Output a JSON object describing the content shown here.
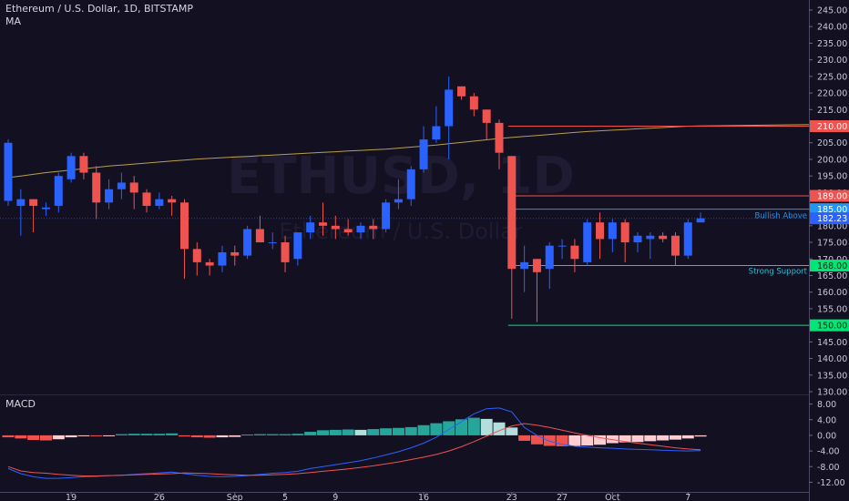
{
  "header": {
    "title": "Ethereum / U.S. Dollar, 1D, BITSTAMP",
    "indicator": "MA",
    "macd_label": "MACD"
  },
  "watermark": {
    "symbol": "ETHUSD, 1D",
    "name": "Ethereum / U.S. Dollar"
  },
  "colors": {
    "background": "#131022",
    "up": "#2962ff",
    "down": "#ef5350",
    "ma": "#b8a04a",
    "hist_up_strong": "#26a69a",
    "hist_up_weak": "#b2dfdb",
    "hist_down_strong": "#ef5350",
    "hist_down_weak": "#ffcdd2",
    "macd_line": "#2962ff",
    "signal_line": "#ef5350"
  },
  "chart_data": {
    "type": "candlestick",
    "price_axis": {
      "min": 130,
      "max": 245,
      "ticks": [
        "245.00",
        "240.00",
        "235.00",
        "230.00",
        "225.00",
        "220.00",
        "215.00",
        "210.00",
        "205.00",
        "200.00",
        "195.00",
        "190.00",
        "185.00",
        "180.00",
        "175.00",
        "170.00",
        "165.00",
        "160.00",
        "155.00",
        "150.00",
        "145.00",
        "140.00",
        "135.00",
        "130.00"
      ]
    },
    "x_labels": [
      {
        "index": 5,
        "label": "19"
      },
      {
        "index": 12,
        "label": "26"
      },
      {
        "index": 18,
        "label": "Sep"
      },
      {
        "index": 22,
        "label": "5"
      },
      {
        "index": 26,
        "label": "9"
      },
      {
        "index": 33,
        "label": "16"
      },
      {
        "index": 40,
        "label": "23"
      },
      {
        "index": 44,
        "label": "27"
      },
      {
        "index": 48,
        "label": "Oct"
      },
      {
        "index": 54,
        "label": "7"
      }
    ],
    "candles": [
      {
        "o": 187.5,
        "h": 206,
        "l": 186,
        "c": 205
      },
      {
        "o": 186,
        "h": 191,
        "l": 177,
        "c": 188
      },
      {
        "o": 188,
        "h": 188,
        "l": 178,
        "c": 186
      },
      {
        "o": 185,
        "h": 187,
        "l": 183,
        "c": 185.5
      },
      {
        "o": 186,
        "h": 196,
        "l": 184,
        "c": 195
      },
      {
        "o": 194,
        "h": 202,
        "l": 193,
        "c": 201
      },
      {
        "o": 201,
        "h": 202,
        "l": 194,
        "c": 196
      },
      {
        "o": 196,
        "h": 198,
        "l": 182,
        "c": 187
      },
      {
        "o": 187,
        "h": 194,
        "l": 185,
        "c": 191
      },
      {
        "o": 191,
        "h": 196,
        "l": 188,
        "c": 193
      },
      {
        "o": 193,
        "h": 195,
        "l": 185,
        "c": 190
      },
      {
        "o": 190,
        "h": 191,
        "l": 184,
        "c": 186
      },
      {
        "o": 186,
        "h": 190,
        "l": 185,
        "c": 188
      },
      {
        "o": 188,
        "h": 189,
        "l": 183,
        "c": 187
      },
      {
        "o": 187,
        "h": 188,
        "l": 164,
        "c": 173
      },
      {
        "o": 173,
        "h": 175,
        "l": 165,
        "c": 169
      },
      {
        "o": 169,
        "h": 170,
        "l": 165,
        "c": 168
      },
      {
        "o": 168,
        "h": 174,
        "l": 166,
        "c": 172
      },
      {
        "o": 172,
        "h": 174,
        "l": 168,
        "c": 171
      },
      {
        "o": 171,
        "h": 180,
        "l": 170,
        "c": 179
      },
      {
        "o": 179,
        "h": 183,
        "l": 175,
        "c": 175
      },
      {
        "o": 175,
        "h": 178,
        "l": 173,
        "c": 175
      },
      {
        "o": 175,
        "h": 177,
        "l": 166,
        "c": 169
      },
      {
        "o": 170,
        "h": 178,
        "l": 168,
        "c": 178
      },
      {
        "o": 178,
        "h": 183,
        "l": 176,
        "c": 181
      },
      {
        "o": 181,
        "h": 187,
        "l": 177,
        "c": 180
      },
      {
        "o": 180,
        "h": 183,
        "l": 176,
        "c": 179
      },
      {
        "o": 179,
        "h": 182,
        "l": 177,
        "c": 178
      },
      {
        "o": 178,
        "h": 181,
        "l": 176,
        "c": 180
      },
      {
        "o": 180,
        "h": 182,
        "l": 176,
        "c": 179
      },
      {
        "o": 179,
        "h": 188,
        "l": 178,
        "c": 187
      },
      {
        "o": 187,
        "h": 194,
        "l": 185,
        "c": 188
      },
      {
        "o": 188,
        "h": 198,
        "l": 186,
        "c": 197
      },
      {
        "o": 197,
        "h": 210,
        "l": 196,
        "c": 206
      },
      {
        "o": 206,
        "h": 216,
        "l": 205,
        "c": 210
      },
      {
        "o": 210,
        "h": 225,
        "l": 200,
        "c": 221
      },
      {
        "o": 222,
        "h": 222,
        "l": 218,
        "c": 219
      },
      {
        "o": 219,
        "h": 220,
        "l": 213,
        "c": 215
      },
      {
        "o": 215,
        "h": 215,
        "l": 206,
        "c": 211
      },
      {
        "o": 211,
        "h": 212,
        "l": 197,
        "c": 202
      },
      {
        "o": 201,
        "h": 201,
        "l": 152,
        "c": 167
      },
      {
        "o": 167,
        "h": 174,
        "l": 160,
        "c": 169
      },
      {
        "o": 170,
        "h": 170,
        "l": 151,
        "c": 166
      },
      {
        "o": 167,
        "h": 175,
        "l": 161,
        "c": 174
      },
      {
        "o": 174,
        "h": 176,
        "l": 170,
        "c": 174
      },
      {
        "o": 174,
        "h": 176,
        "l": 166,
        "c": 170
      },
      {
        "o": 169,
        "h": 182,
        "l": 168,
        "c": 181
      },
      {
        "o": 181,
        "h": 184,
        "l": 170,
        "c": 176
      },
      {
        "o": 176,
        "h": 182,
        "l": 172,
        "c": 181
      },
      {
        "o": 181,
        "h": 182,
        "l": 169,
        "c": 175
      },
      {
        "o": 175,
        "h": 178,
        "l": 172,
        "c": 177
      },
      {
        "o": 176,
        "h": 178,
        "l": 170,
        "c": 177
      },
      {
        "o": 177,
        "h": 178,
        "l": 175,
        "c": 176
      },
      {
        "o": 177,
        "h": 178,
        "l": 168,
        "c": 171
      },
      {
        "o": 171,
        "h": 182,
        "l": 170,
        "c": 181
      },
      {
        "o": 181,
        "h": 184,
        "l": 181,
        "c": 182.23
      }
    ],
    "moving_average": [
      194.5,
      195,
      195.5,
      196,
      196.4,
      196.8,
      197.2,
      197.6,
      198,
      198.3,
      198.6,
      198.9,
      199.2,
      199.5,
      199.8,
      200.1,
      200.3,
      200.5,
      200.7,
      200.9,
      201.1,
      201.3,
      201.5,
      201.7,
      201.9,
      202.1,
      202.3,
      202.5,
      202.7,
      202.9,
      203.1,
      203.4,
      203.7,
      204,
      204.3,
      204.7,
      205.1,
      205.5,
      205.9,
      206.3,
      206.6,
      206.9,
      207.2,
      207.5,
      207.8,
      208.1,
      208.4,
      208.6,
      208.8,
      209,
      209.2,
      209.4,
      209.6,
      209.8,
      210,
      210.1
    ],
    "levels": [
      {
        "value": 210,
        "label": "210.00",
        "color": "#ef5350",
        "start_index": 40
      },
      {
        "value": 189,
        "label": "189.00",
        "color": "#ef5350",
        "start_index": 40
      },
      {
        "value": 185,
        "label": "185.00",
        "color": "#2196f3",
        "start_index": 40,
        "note": "Bullish Above"
      },
      {
        "value": 168,
        "label": "168.00",
        "color": "#00e676",
        "start_index": 40,
        "note": "Strong Support"
      },
      {
        "value": 150,
        "label": "150.00",
        "color": "#00e676",
        "start_index": 40
      }
    ],
    "last_price": {
      "value": 182.23,
      "label": "182.23",
      "color": "#2962ff"
    },
    "macd": {
      "axis": {
        "min": -14,
        "max": 10,
        "ticks": [
          "8.00",
          "4.00",
          "0.00",
          "-4.00",
          "-8.00",
          "-12.00"
        ]
      },
      "histogram": [
        -0.5,
        -0.8,
        -1.2,
        -1.3,
        -1.0,
        -0.5,
        -0.2,
        -0.2,
        -0.1,
        0.3,
        0.4,
        0.4,
        0.4,
        0.5,
        -0.3,
        -0.5,
        -0.6,
        -0.5,
        -0.4,
        0.2,
        0.3,
        0.3,
        0.3,
        0.4,
        0.9,
        1.3,
        1.4,
        1.5,
        1.4,
        1.6,
        1.8,
        1.9,
        2.1,
        2.6,
        3.1,
        3.6,
        4.1,
        4.5,
        4.2,
        3.3,
        2.0,
        -1.4,
        -2.3,
        -2.7,
        -2.8,
        -2.7,
        -2.6,
        -2.4,
        -2.0,
        -1.8,
        -1.7,
        -1.5,
        -1.3,
        -1.1,
        -0.8,
        -0.3
      ],
      "macd_line": [
        -8.5,
        -9.8,
        -10.6,
        -11,
        -11,
        -10.8,
        -10.6,
        -10.5,
        -10.3,
        -10.2,
        -10,
        -9.8,
        -9.6,
        -9.4,
        -9.8,
        -10.2,
        -10.5,
        -10.6,
        -10.5,
        -10.3,
        -10,
        -9.7,
        -9.5,
        -9.2,
        -8.5,
        -8,
        -7.5,
        -7,
        -6.5,
        -5.8,
        -5,
        -4.2,
        -3.2,
        -2,
        -0.5,
        1.5,
        3.5,
        5.5,
        6.8,
        7,
        6,
        2,
        0,
        -1.5,
        -2.3,
        -2.8,
        -3,
        -3.2,
        -3.3,
        -3.5,
        -3.6,
        -3.7,
        -3.8,
        -3.9,
        -4,
        -3.9
      ],
      "signal_line": [
        -8,
        -9.1,
        -9.5,
        -9.7,
        -10,
        -10.2,
        -10.4,
        -10.4,
        -10.3,
        -10.2,
        -10.1,
        -10,
        -9.9,
        -9.8,
        -9.6,
        -9.7,
        -9.8,
        -10,
        -10.1,
        -10.2,
        -10.2,
        -10.1,
        -10,
        -9.8,
        -9.5,
        -9.2,
        -8.9,
        -8.6,
        -8.2,
        -7.8,
        -7.3,
        -6.8,
        -6.2,
        -5.6,
        -4.9,
        -4,
        -2.9,
        -1.6,
        -0.2,
        1.2,
        2.4,
        3,
        2.6,
        2,
        1.3,
        0.6,
        0,
        -0.6,
        -1.1,
        -1.6,
        -2,
        -2.4,
        -2.8,
        -3.2,
        -3.5,
        -3.7
      ]
    }
  }
}
